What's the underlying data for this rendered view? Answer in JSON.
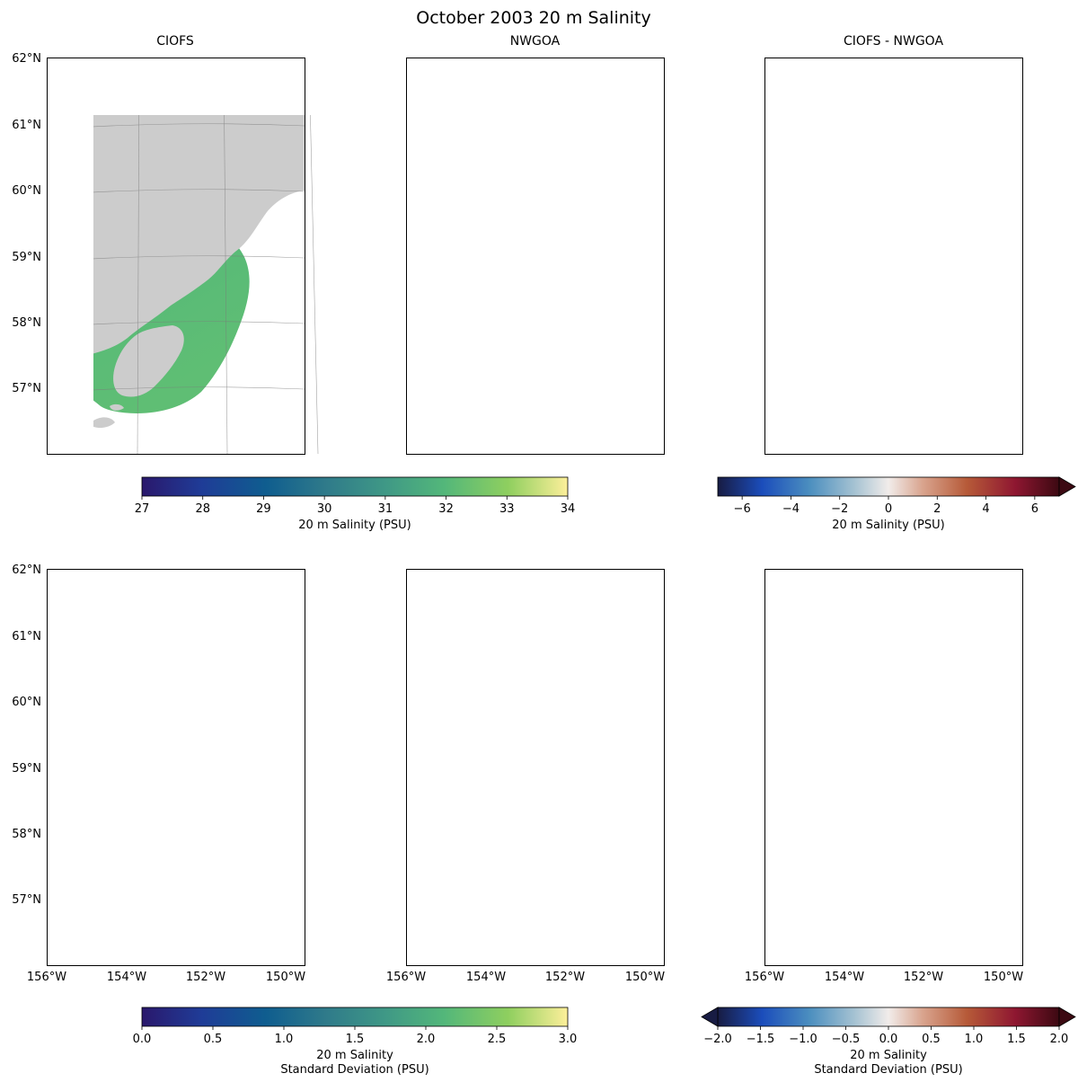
{
  "figure": {
    "title": "October 2003 20 m Salinity",
    "colors": {
      "land": "#cccccc",
      "map_frame": "#000000",
      "graticule": "#7a7a7a"
    }
  },
  "panels": [
    {
      "id": "mean-ciofs",
      "title": "CIOFS",
      "field": "salinity",
      "domain": "ciofs",
      "show_lat_labels": true,
      "show_lon_labels": false
    },
    {
      "id": "mean-nwgoa",
      "title": "NWGOA",
      "field": "salinity",
      "domain": "nwgoa",
      "show_lat_labels": false,
      "show_lon_labels": false
    },
    {
      "id": "mean-diff",
      "title": "CIOFS - NWGOA",
      "field": "salinity-diff",
      "domain": "diff",
      "show_lat_labels": false,
      "show_lon_labels": false
    },
    {
      "id": "std-ciofs",
      "title": "",
      "field": "std",
      "domain": "ciofs",
      "show_lat_labels": true,
      "show_lon_labels": true
    },
    {
      "id": "std-nwgoa",
      "title": "",
      "field": "std",
      "domain": "nwgoa",
      "show_lat_labels": false,
      "show_lon_labels": true
    },
    {
      "id": "std-diff",
      "title": "",
      "field": "std-diff",
      "domain": "diff",
      "show_lat_labels": false,
      "show_lon_labels": true
    }
  ],
  "map_axes": {
    "lat_ticks": [
      "62°N",
      "61°N",
      "60°N",
      "59°N",
      "58°N",
      "57°N"
    ],
    "lon_ticks": [
      "156°W",
      "154°W",
      "152°W",
      "150°W"
    ],
    "lon_range": [
      -156,
      -149
    ],
    "lat_range": [
      56,
      62
    ]
  },
  "colorbars": [
    {
      "id": "salinity-cbar",
      "label_lines": [
        "20 m Salinity (PSU)"
      ],
      "range": [
        27,
        34
      ],
      "ticks": [
        "27",
        "28",
        "29",
        "30",
        "31",
        "32",
        "33",
        "34"
      ],
      "extend": "neither",
      "cmap": "haline"
    },
    {
      "id": "salinity-diff-cbar",
      "label_lines": [
        "20 m Salinity (PSU)"
      ],
      "range": [
        -7,
        7
      ],
      "ticks": [
        "−6",
        "−4",
        "−2",
        "0",
        "2",
        "4",
        "6"
      ],
      "extend": "max",
      "cmap": "balance"
    },
    {
      "id": "std-cbar",
      "label_lines": [
        "20 m Salinity",
        "Standard Deviation (PSU)"
      ],
      "range": [
        0,
        3
      ],
      "ticks": [
        "0.0",
        "0.5",
        "1.0",
        "1.5",
        "2.0",
        "2.5",
        "3.0"
      ],
      "extend": "neither",
      "cmap": "haline"
    },
    {
      "id": "std-diff-cbar",
      "label_lines": [
        "20 m Salinity",
        "Standard Deviation (PSU)"
      ],
      "range": [
        -2,
        2
      ],
      "ticks": [
        "−2.0",
        "−1.5",
        "−1.0",
        "−0.5",
        "0.0",
        "0.5",
        "1.0",
        "1.5",
        "2.0"
      ],
      "extend": "both",
      "cmap": "balance"
    }
  ],
  "colormaps": {
    "haline": [
      "#2a186c",
      "#1f3c97",
      "#0f5d8f",
      "#2f7a8a",
      "#3f9886",
      "#53b77a",
      "#8fcf5f",
      "#fdef9a"
    ],
    "balance": [
      "#181c43",
      "#1b4dbb",
      "#4c8fbf",
      "#a5c2d2",
      "#f1ecea",
      "#d9a48e",
      "#b65a38",
      "#8f1731",
      "#3c0912"
    ]
  }
}
